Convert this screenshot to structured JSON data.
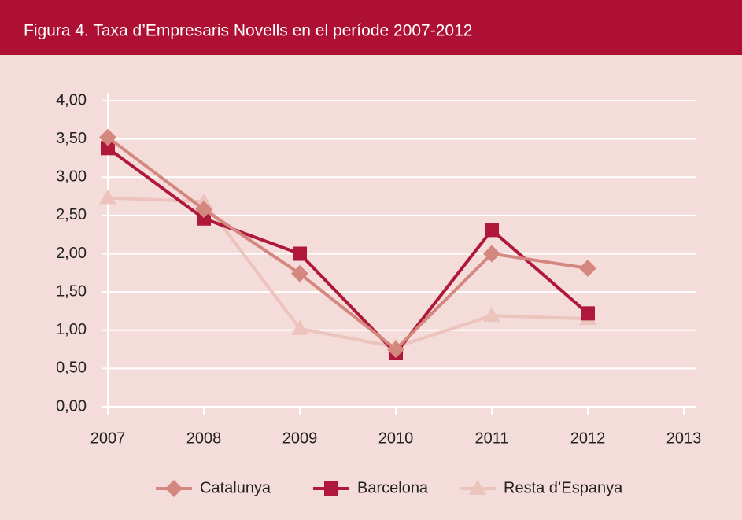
{
  "chart_data": {
    "type": "line",
    "title": "Figura 4. Taxa d’Empresaris Novells en el període 2007-2012",
    "x": [
      2007,
      2008,
      2009,
      2010,
      2011,
      2012
    ],
    "xlim": [
      2007,
      2013
    ],
    "xticks": [
      2007,
      2008,
      2009,
      2010,
      2011,
      2012,
      2013
    ],
    "ylim": [
      0,
      4
    ],
    "yticks": [
      {
        "value": 0,
        "label": "0,00"
      },
      {
        "value": 0.5,
        "label": "0,50"
      },
      {
        "value": 1,
        "label": "1,00"
      },
      {
        "value": 1.5,
        "label": "1,50"
      },
      {
        "value": 2,
        "label": "2,00"
      },
      {
        "value": 2.5,
        "label": "2,50"
      },
      {
        "value": 3,
        "label": "3,00"
      },
      {
        "value": 3.5,
        "label": "3,50"
      },
      {
        "value": 4,
        "label": "4,00"
      }
    ],
    "grid": true,
    "legend": "bottom",
    "series": [
      {
        "name": "Catalunya",
        "color": "#d4877e",
        "marker": "diamond",
        "values": [
          3.52,
          2.58,
          1.74,
          0.75,
          2.0,
          1.81
        ]
      },
      {
        "name": "Barcelona",
        "color": "#b0183a",
        "marker": "square",
        "values": [
          3.38,
          2.46,
          2.0,
          0.7,
          2.31,
          1.22
        ]
      },
      {
        "name": "Resta d’Espanya",
        "color": "#ecc4bd",
        "marker": "triangle",
        "values": [
          2.73,
          2.68,
          1.02,
          0.78,
          1.19,
          1.15
        ]
      }
    ]
  }
}
